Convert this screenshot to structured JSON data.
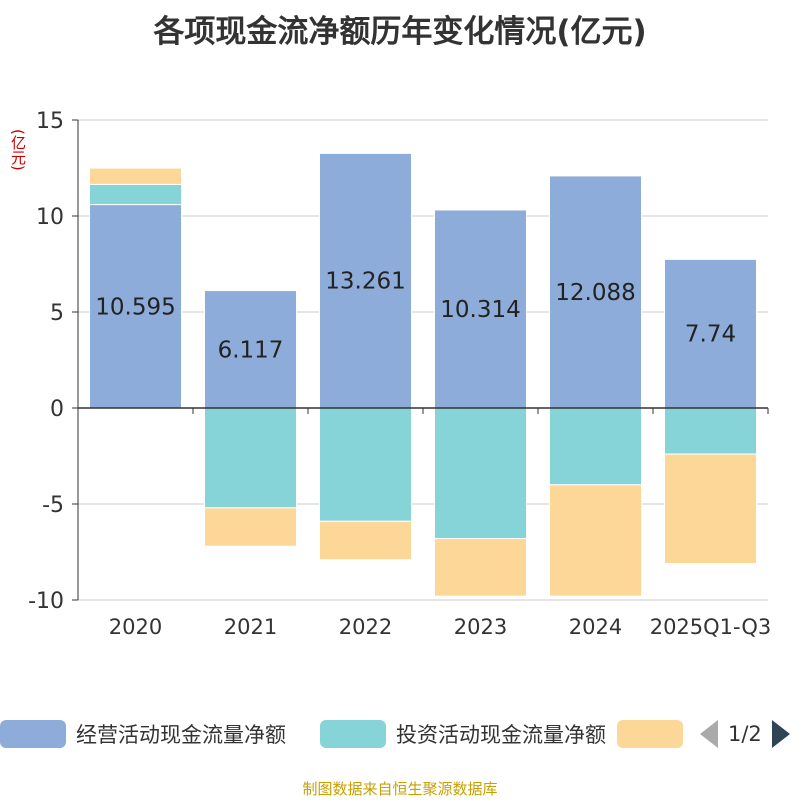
{
  "chart_data": {
    "type": "bar",
    "stacked": true,
    "title": "各项现金流净额历年变化情况(亿元)",
    "ylabel": "(亿元)",
    "ylim": [
      -10,
      15
    ],
    "yticks": [
      15,
      10,
      5,
      0,
      -5,
      -10
    ],
    "categories": [
      "2020",
      "2021",
      "2022",
      "2023",
      "2024",
      "2025Q1-Q3"
    ],
    "series": [
      {
        "name": "经营活动现金流量净额",
        "color": "#8eacd9",
        "values": [
          10.595,
          6.117,
          13.261,
          10.314,
          12.088,
          7.74
        ],
        "labels": [
          "10.595",
          "6.117",
          "13.261",
          "10.314",
          "12.088",
          "7.74"
        ]
      },
      {
        "name": "投资活动现金流量净额",
        "color": "#86d4d8",
        "values": [
          1.05,
          -5.2,
          -5.9,
          -6.8,
          -4.0,
          -2.4
        ]
      },
      {
        "name": "",
        "color": "#fdd797",
        "values": [
          0.85,
          -2.0,
          -2.0,
          -3.0,
          -5.8,
          -5.7
        ]
      }
    ]
  },
  "legend": {
    "items": [
      {
        "label": "经营活动现金流量净额",
        "color": "#8eacd9"
      },
      {
        "label": "投资活动现金流量净额",
        "color": "#86d4d8"
      },
      {
        "label": "",
        "color": "#fdd797"
      }
    ],
    "page": "1/2"
  },
  "footer": "制图数据来自恒生聚源数据库"
}
